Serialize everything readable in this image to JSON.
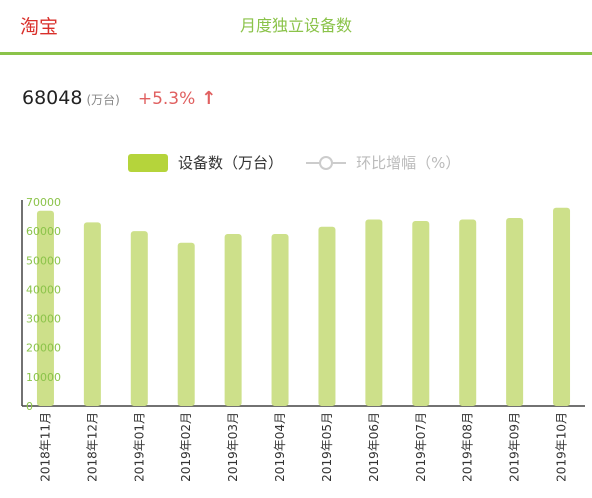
{
  "app": {
    "name": "淘宝"
  },
  "header": {
    "title": "月度独立设备数"
  },
  "summary": {
    "value": "68048",
    "unit": "(万台)",
    "change": "+5.3%",
    "arrow": "↑"
  },
  "colors": {
    "accent": "#8bc34a",
    "bar": "#cde08a",
    "app_name": "#d9302b",
    "change": "#e06060",
    "tick": "#8bc34a"
  },
  "legend": [
    {
      "label": "设备数（万台）",
      "swatch_color": "#b5d43b",
      "type": "bar"
    },
    {
      "label": "环比增幅（%）",
      "swatch_color": "#cccccc",
      "type": "line"
    }
  ],
  "chart_data": {
    "type": "bar",
    "categories": [
      "2018年11月",
      "2018年12月",
      "2019年01月",
      "2019年02月",
      "2019年03月",
      "2019年04月",
      "2019年05月",
      "2019年06月",
      "2019年07月",
      "2019年08月",
      "2019年09月",
      "2019年10月"
    ],
    "series": [
      {
        "name": "设备数（万台）",
        "values": [
          67000,
          63000,
          60000,
          56000,
          59000,
          59000,
          61500,
          64000,
          63500,
          64000,
          64500,
          68048
        ]
      }
    ],
    "y_ticks": [
      0,
      10000,
      20000,
      30000,
      40000,
      50000,
      60000,
      70000
    ],
    "ylim": [
      0,
      70000
    ],
    "grid": false,
    "legend_position": "top",
    "title": "",
    "xlabel": "",
    "ylabel": ""
  }
}
